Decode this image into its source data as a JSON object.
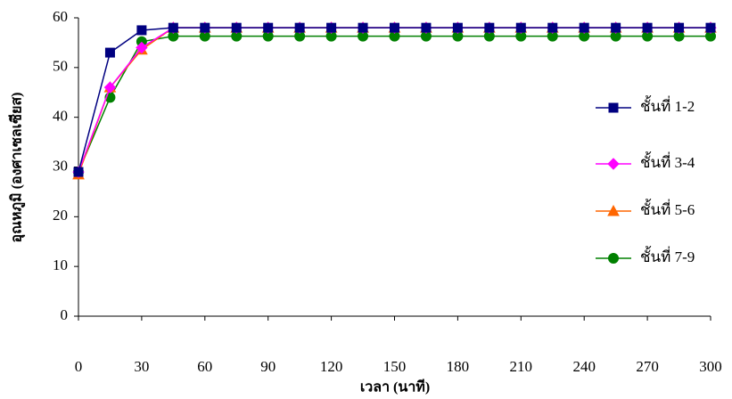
{
  "chart_data": {
    "type": "line",
    "x_label": "เวลา (นาที)",
    "y_label": "อุณหภูมิ (องศาเซลเซียส)",
    "x": [
      0,
      15,
      30,
      45,
      60,
      75,
      90,
      105,
      120,
      135,
      150,
      165,
      180,
      195,
      210,
      225,
      240,
      255,
      270,
      285,
      300
    ],
    "series": [
      {
        "name": "ชั้นที่ 1-2",
        "color": "#000080",
        "marker": "square",
        "values": [
          29,
          53,
          57.5,
          58,
          58,
          58,
          58,
          58,
          58,
          58,
          58,
          58,
          58,
          58,
          58,
          58,
          58,
          58,
          58,
          58,
          58
        ]
      },
      {
        "name": "ชั้นที่ 3-4",
        "color": "#ff00ff",
        "marker": "diamond",
        "values": [
          29,
          46,
          54,
          58,
          58,
          58,
          58,
          58,
          58,
          58,
          58,
          58,
          58,
          58,
          58,
          58,
          58,
          58,
          58,
          58,
          58
        ]
      },
      {
        "name": "ชั้นที่ 5-6",
        "color": "#ff6600",
        "marker": "triangle",
        "values": [
          28.5,
          46,
          53.6,
          58,
          58,
          58,
          58,
          58,
          58,
          58,
          58,
          58,
          58,
          58,
          58,
          58,
          58,
          58,
          58,
          58,
          58
        ]
      },
      {
        "name": "ชั้นที่ 7-9",
        "color": "#008000",
        "marker": "circle",
        "values": [
          29,
          44,
          55.2,
          56.3,
          56.3,
          56.3,
          56.3,
          56.3,
          56.3,
          56.3,
          56.3,
          56.3,
          56.3,
          56.3,
          56.3,
          56.3,
          56.3,
          56.3,
          56.3,
          56.3,
          56.3
        ]
      }
    ],
    "xlim": [
      0,
      300
    ],
    "xticks": [
      0,
      30,
      60,
      90,
      120,
      150,
      180,
      210,
      240,
      270,
      300
    ],
    "ylim": [
      0,
      60
    ],
    "yticks": [
      0,
      10,
      20,
      30,
      40,
      50,
      60
    ],
    "legend": "right"
  }
}
